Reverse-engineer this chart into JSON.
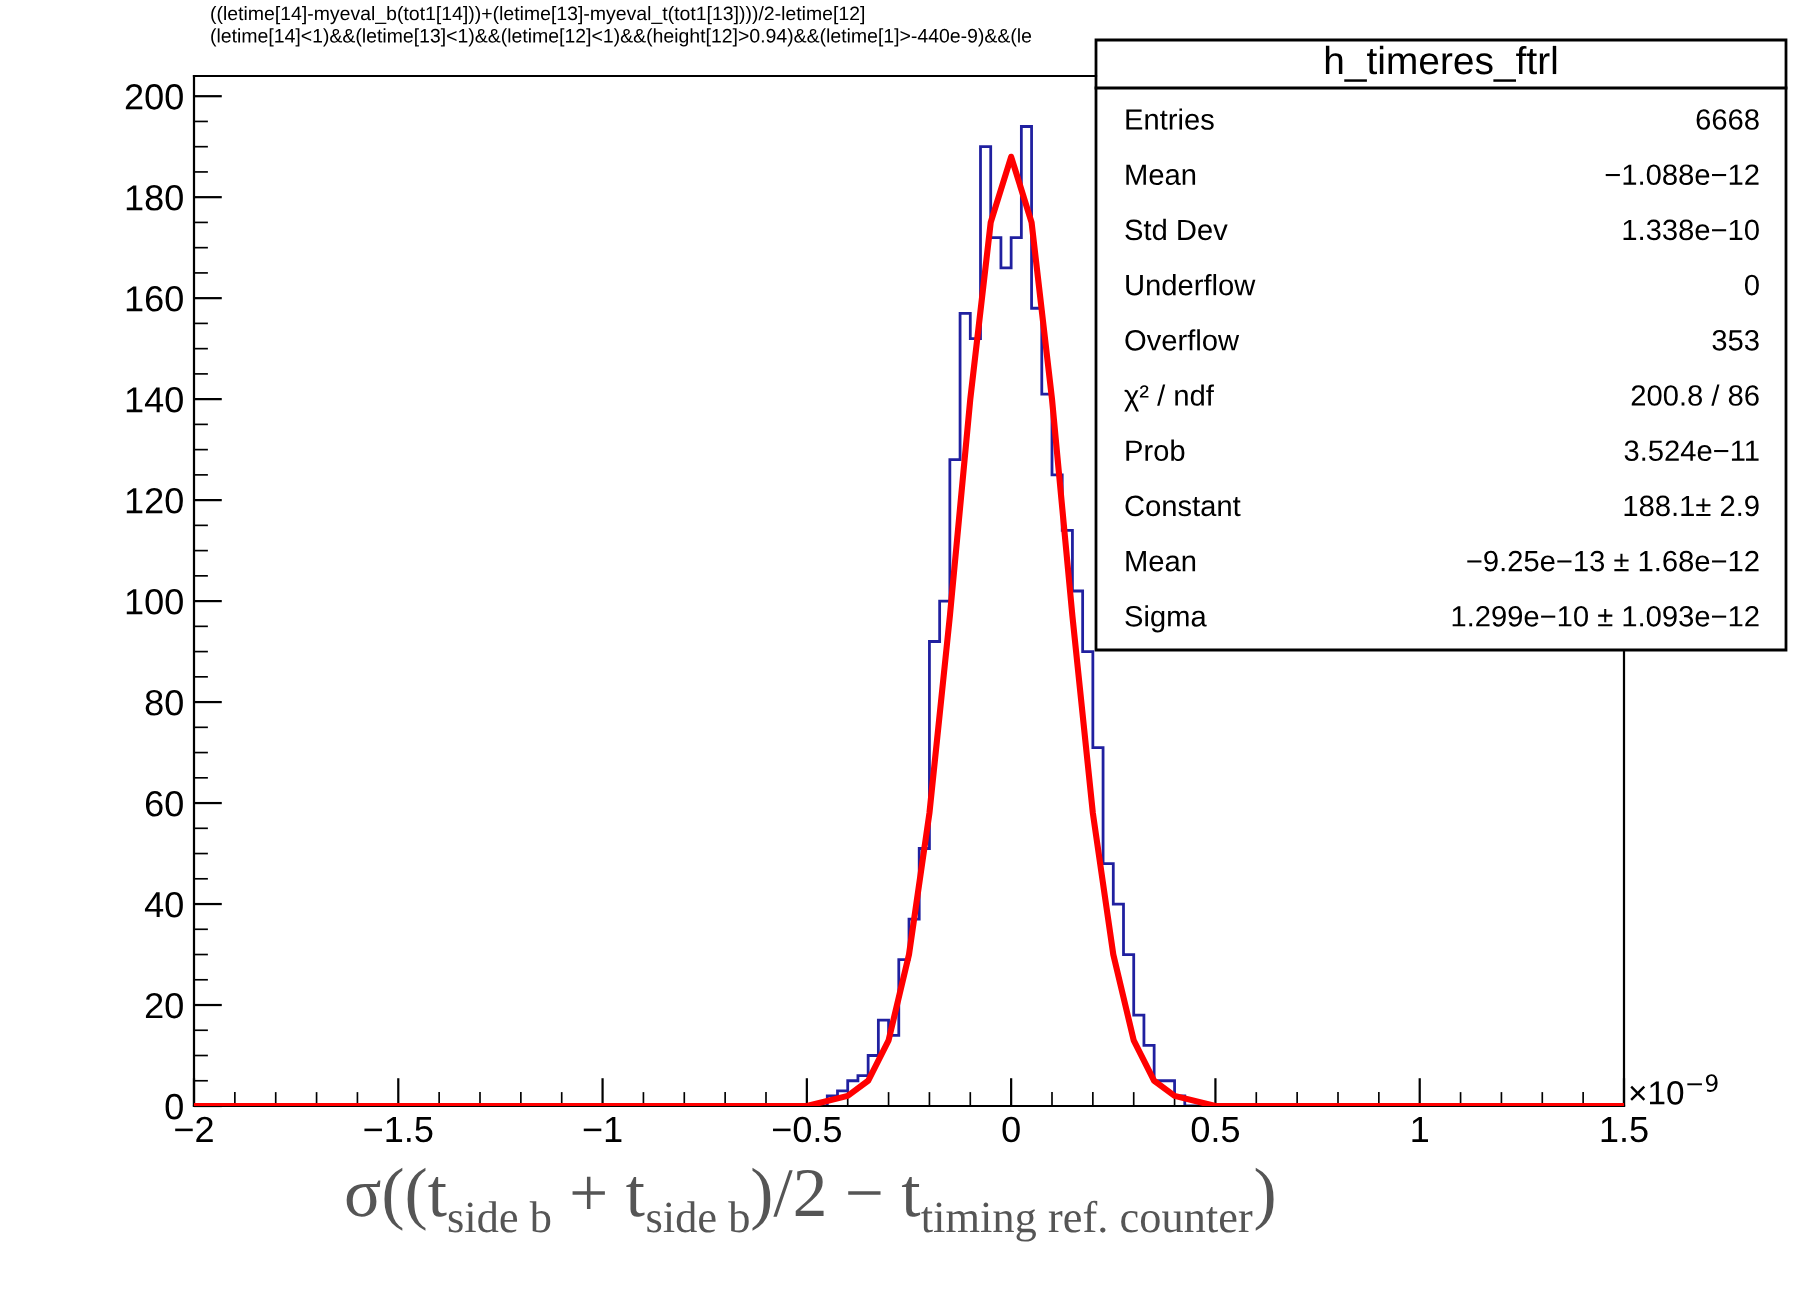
{
  "chart_data": {
    "type": "histogram",
    "title": "((letime[14]-myeval_b(tot1[14]))+(letime[13]-myeval_t(tot1[13])))/2-letime[12]\n(letime[14]<1)&&(letime[13]<1)&&(letime[12]<1)&&(height[12]>0.94)&&(letime[1]>-440e-9)&&(le",
    "xlabel": "σ((t$_{side b}$ + t$_{side b}$)/2 − t$_{timing ref. counter}$)",
    "bins": [
      -2,
      -0.45,
      -0.425,
      -0.4,
      -0.375,
      -0.35,
      -0.325,
      -0.3,
      -0.275,
      -0.25,
      -0.225,
      -0.2,
      -0.175,
      -0.15,
      -0.125,
      -0.1,
      -0.075,
      -0.05,
      -0.025,
      0,
      0.025,
      0.05,
      0.075,
      0.1,
      0.125,
      0.15,
      0.175,
      0.2,
      0.225,
      0.25,
      0.275,
      0.3,
      0.325,
      0.35,
      0.375,
      0.4,
      0.425,
      1.5
    ],
    "values": [
      0,
      2,
      3,
      5,
      6,
      10,
      17,
      14,
      29,
      37,
      51,
      92,
      100,
      128,
      157,
      152,
      190,
      172,
      166,
      172,
      194,
      158,
      141,
      125,
      114,
      102,
      90,
      71,
      48,
      40,
      30,
      18,
      12,
      5,
      5,
      2,
      0
    ],
    "color": "#2020a0",
    "series": [
      {
        "type": "line",
        "color": "#ff0000",
        "x": [
          -2,
          -0.6,
          -0.5,
          -0.4,
          -0.35,
          -0.3,
          -0.25,
          -0.2,
          -0.15,
          -0.1,
          -0.05,
          0,
          0.05,
          0.1,
          0.15,
          0.2,
          0.25,
          0.3,
          0.35,
          0.4,
          0.5,
          0.6,
          1.5
        ],
        "values": [
          0,
          0,
          0,
          2,
          5,
          13,
          30,
          58,
          97,
          140,
          175,
          188,
          175,
          140,
          97,
          58,
          30,
          13,
          5,
          2,
          0,
          0,
          0
        ]
      }
    ],
    "xlim": [
      -2,
      1.5
    ],
    "xticks": [
      {
        "value": -2,
        "label": "−2"
      },
      {
        "value": -1.5,
        "label": "−1.5"
      },
      {
        "value": -1,
        "label": "−1"
      },
      {
        "value": -0.5,
        "label": "−0.5"
      },
      0,
      0.5,
      1,
      1.5
    ],
    "ylim": [
      0,
      204
    ],
    "yticks": [
      0,
      20,
      40,
      60,
      80,
      100,
      120,
      140,
      160,
      180,
      200
    ],
    "annotations": [
      "×10$^{−9}$",
      "h_timeres_ftrl",
      "Entries",
      "6668",
      "Mean",
      "−1.088e−12",
      "Std Dev",
      "1.338e−10",
      "Underflow",
      "0",
      "Overflow",
      "353",
      "χ² / ndf",
      "200.8 / 86",
      "Prob",
      "3.524e−11",
      "Constant",
      "188.1± 2.9",
      "Mean",
      "−9.25e−13 ± 1.68e−12",
      "Sigma",
      "1.299e−10 ± 1.093e−12"
    ]
  }
}
